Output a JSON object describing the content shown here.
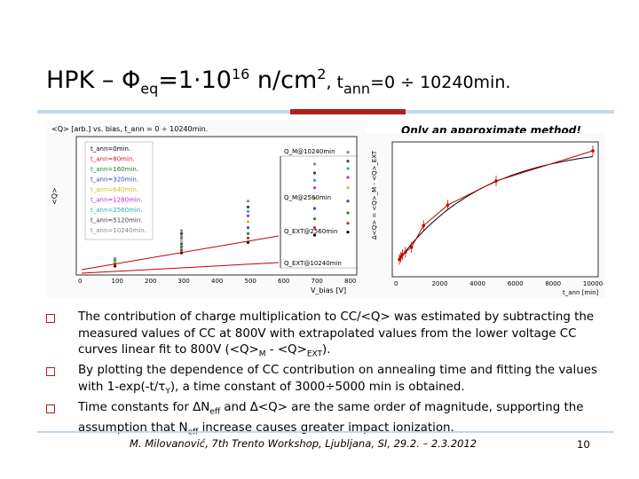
{
  "title": {
    "part1": "HPK – Φ",
    "sub_eq": "eq",
    "part2": "=1·10",
    "sup_16": "16",
    "part3": " n/cm",
    "sup_2": "2",
    "part4": ", t",
    "sub_ann": "ann",
    "part5": "=0 ÷ 10240min."
  },
  "note": "Only  an approximate method!",
  "colors": {
    "accent_red": "#b01e1e",
    "rule_blue": "#c3d8ee"
  },
  "chart_data": [
    {
      "type": "scatter",
      "title": "<Q> [arb.] vs. bias, t_ann = 0 ÷ 10240min.",
      "xlabel": "V_bias [V]",
      "ylabel": "<Q>",
      "x_ticks": [
        "0",
        "100",
        "200",
        "300",
        "400",
        "500",
        "600",
        "700",
        "800"
      ],
      "series": [
        {
          "name": "t_ann=0min.",
          "color": "#000000",
          "points": [
            [
              100,
              0.26
            ],
            [
              300,
              0.35
            ],
            [
              500,
              0.42
            ],
            [
              700,
              0.47
            ],
            [
              800,
              0.49
            ]
          ]
        },
        {
          "name": "t_ann=80min.",
          "color": "#d22020",
          "points": [
            [
              100,
              0.27
            ],
            [
              300,
              0.37
            ],
            [
              500,
              0.45
            ],
            [
              700,
              0.52
            ],
            [
              800,
              0.55
            ]
          ]
        },
        {
          "name": "t_ann=160min.",
          "color": "#2c7a2c",
          "points": [
            [
              100,
              0.28
            ],
            [
              300,
              0.39
            ],
            [
              500,
              0.48
            ],
            [
              700,
              0.58
            ],
            [
              800,
              0.62
            ]
          ]
        },
        {
          "name": "t_ann=320min.",
          "color": "#2a4fc0",
          "points": [
            [
              100,
              0.29
            ],
            [
              300,
              0.41
            ],
            [
              500,
              0.52
            ],
            [
              700,
              0.65
            ],
            [
              800,
              0.7
            ]
          ]
        },
        {
          "name": "t_ann=640min.",
          "color": "#d0c020",
          "points": [
            [
              100,
              0.29
            ],
            [
              300,
              0.43
            ],
            [
              500,
              0.56
            ],
            [
              700,
              0.72
            ],
            [
              800,
              0.79
            ]
          ]
        },
        {
          "name": "t_ann=1280min.",
          "color": "#c030c0",
          "points": [
            [
              100,
              0.3
            ],
            [
              300,
              0.45
            ],
            [
              500,
              0.6
            ],
            [
              700,
              0.79
            ],
            [
              800,
              0.86
            ]
          ]
        },
        {
          "name": "t_ann=2560min.",
          "color": "#20b0b0",
          "points": [
            [
              100,
              0.3
            ],
            [
              300,
              0.46
            ],
            [
              500,
              0.63
            ],
            [
              700,
              0.84
            ],
            [
              800,
              0.92
            ]
          ]
        },
        {
          "name": "t_ann=5120min.",
          "color": "#404040",
          "points": [
            [
              100,
              0.31
            ],
            [
              300,
              0.48
            ],
            [
              500,
              0.66
            ],
            [
              700,
              0.89
            ],
            [
              800,
              0.97
            ]
          ]
        },
        {
          "name": "t_ann=10240min.",
          "color": "#888888",
          "points": [
            [
              100,
              0.31
            ],
            [
              300,
              0.5
            ],
            [
              500,
              0.7
            ],
            [
              700,
              0.95
            ],
            [
              800,
              1.03
            ]
          ]
        }
      ],
      "annotations": [
        "Q_M@10240min",
        "Q_M@2560min",
        "Q_EXT@2560min",
        "Q_EXT@10240min"
      ]
    },
    {
      "type": "line",
      "xlabel": "t_ann [min]",
      "ylabel": "Δ<Q> = <Q>_M - <Q>_EXT",
      "x_ticks": [
        "0",
        "2000",
        "4000",
        "6000",
        "8000",
        "10000"
      ],
      "xlim": [
        0,
        10240
      ],
      "ylim": [
        0,
        1
      ],
      "series": [
        {
          "name": "data",
          "color": "#c00000",
          "x": [
            0,
            80,
            160,
            320,
            640,
            1280,
            2560,
            5120,
            10240
          ],
          "y": [
            0.1,
            0.12,
            0.14,
            0.16,
            0.2,
            0.38,
            0.55,
            0.75,
            1.0
          ]
        }
      ]
    }
  ],
  "bullets": [
    {
      "text1": "The contribution of charge multiplication to CC/<Q> was estimated by subtracting the measured values of CC at 800V with extrapolated values from the lower voltage CC curves linear fit to 800V (<Q>",
      "sub_a": "M",
      "text2": " - <Q>",
      "sub_b": "EXT",
      "text3": ")."
    },
    {
      "text1": "By plotting the dependence of CC contribution on annealing time and fitting the values with 1-exp(-t/τ",
      "sub_a": "Y",
      "text2": "), a time constant of 3000÷5000 min is obtained."
    },
    {
      "text1": "Time constants for ΔN",
      "sub_a": "eff",
      "text2": " and Δ<Q> are the same order of magnitude, supporting the assumption that N",
      "sub_b": "eff",
      "text3": " increase causes greater impact ionization."
    }
  ],
  "footer": "M. Milovanović, 7th Trento Workshop, Ljubljana, SI, 29.2. – 2.3.2012",
  "page_number": "10"
}
